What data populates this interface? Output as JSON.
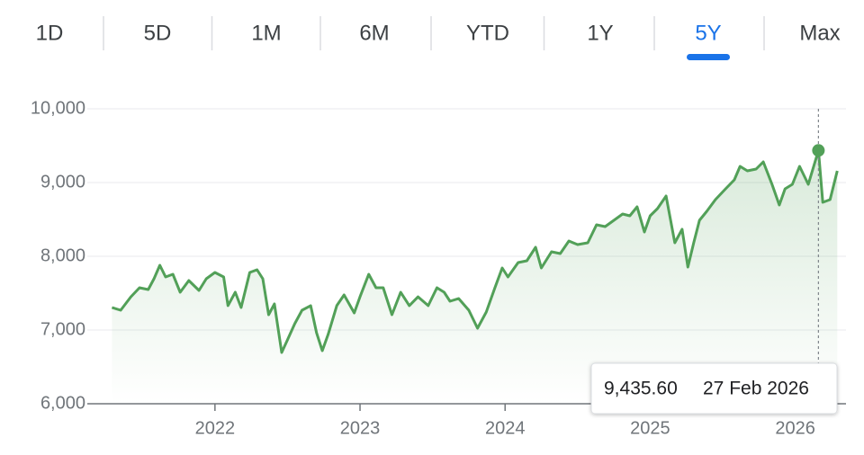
{
  "chart_data": {
    "type": "line",
    "tabs": [
      "1D",
      "5D",
      "1M",
      "6M",
      "YTD",
      "1Y",
      "5Y",
      "Max"
    ],
    "active_tab": 6,
    "x": [
      2021.29,
      2021.35,
      2021.42,
      2021.48,
      2021.54,
      2021.58,
      2021.62,
      2021.66,
      2021.71,
      2021.76,
      2021.82,
      2021.89,
      2021.94,
      2022.0,
      2022.06,
      2022.09,
      2022.14,
      2022.18,
      2022.24,
      2022.29,
      2022.33,
      2022.37,
      2022.41,
      2022.46,
      2022.5,
      2022.55,
      2022.6,
      2022.66,
      2022.7,
      2022.74,
      2022.78,
      2022.84,
      2022.89,
      2022.96,
      2023.0,
      2023.06,
      2023.11,
      2023.16,
      2023.22,
      2023.28,
      2023.34,
      2023.4,
      2023.47,
      2023.53,
      2023.58,
      2023.62,
      2023.68,
      2023.75,
      2023.81,
      2023.87,
      2023.93,
      2023.98,
      2024.02,
      2024.09,
      2024.15,
      2024.21,
      2024.25,
      2024.32,
      2024.38,
      2024.44,
      2024.5,
      2024.57,
      2024.63,
      2024.69,
      2024.75,
      2024.81,
      2024.86,
      2024.91,
      2024.96,
      2025.0,
      2025.05,
      2025.11,
      2025.17,
      2025.22,
      2025.26,
      2025.3,
      2025.34,
      2025.39,
      2025.45,
      2025.52,
      2025.58,
      2025.62,
      2025.67,
      2025.73,
      2025.78,
      2025.84,
      2025.89,
      2025.93,
      2025.98,
      2026.03,
      2026.09,
      2026.16,
      2026.19,
      2026.24,
      2026.29
    ],
    "values": [
      7305,
      7268,
      7450,
      7573,
      7549,
      7695,
      7878,
      7720,
      7756,
      7512,
      7671,
      7537,
      7695,
      7780,
      7720,
      7330,
      7512,
      7305,
      7780,
      7817,
      7695,
      7207,
      7354,
      6695,
      6866,
      7085,
      7268,
      7330,
      6963,
      6720,
      6940,
      7330,
      7476,
      7232,
      7450,
      7756,
      7573,
      7573,
      7207,
      7512,
      7330,
      7450,
      7330,
      7573,
      7512,
      7390,
      7427,
      7268,
      7024,
      7244,
      7573,
      7841,
      7720,
      7915,
      7939,
      8122,
      7841,
      8061,
      8037,
      8207,
      8159,
      8183,
      8427,
      8402,
      8488,
      8573,
      8549,
      8671,
      8329,
      8549,
      8646,
      8817,
      8183,
      8366,
      7854,
      8183,
      8488,
      8610,
      8768,
      8915,
      9037,
      9220,
      9159,
      9183,
      9280,
      8976,
      8695,
      8915,
      8976,
      9220,
      8976,
      9435.6,
      8732,
      8768,
      9159
    ],
    "color": "#52a058",
    "xlim": [
      2021.12,
      2026.35
    ],
    "ylim": [
      6000,
      10000
    ],
    "xticks": [
      2022,
      2023,
      2024,
      2025,
      2026
    ],
    "yticks": [
      {
        "value": 6000,
        "label": "6,000"
      },
      {
        "value": 7000,
        "label": "7,000"
      },
      {
        "value": 8000,
        "label": "8,000"
      },
      {
        "value": 9000,
        "label": "9,000"
      },
      {
        "value": 10000,
        "label": "10,000"
      }
    ],
    "grid": true,
    "highlight": {
      "x": 2026.16,
      "value": 9435.6,
      "value_label": "9,435.60",
      "date": "27 Feb 2026"
    }
  }
}
